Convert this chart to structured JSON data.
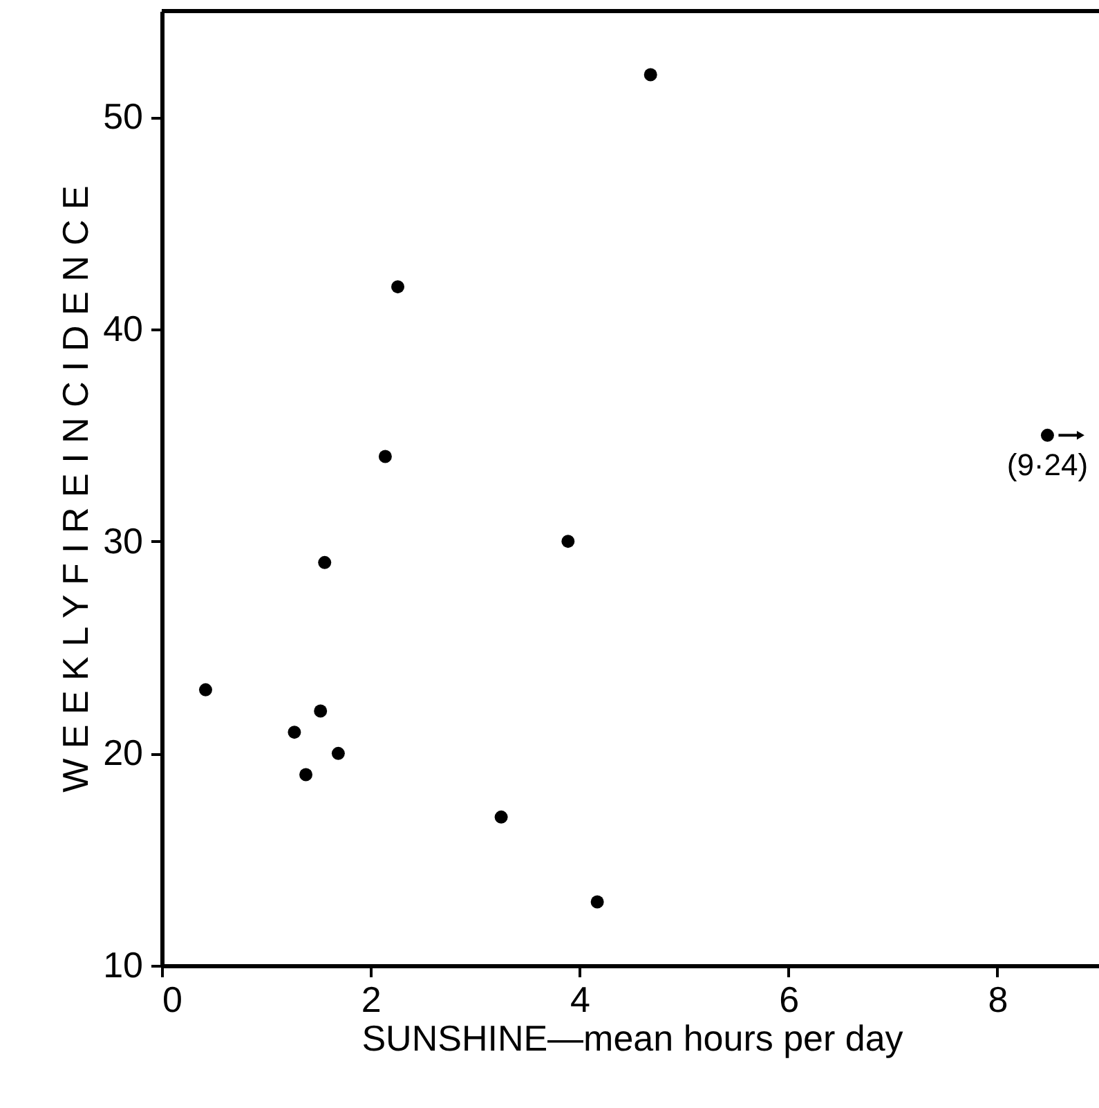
{
  "chart_data": {
    "type": "scatter",
    "xlabel": "SUNSHINE—mean hours per day",
    "ylabel": "W E E K L Y     F I R E     I N C I D E N C E",
    "x": [
      0.42,
      1.27,
      1.38,
      1.52,
      1.69,
      1.56,
      2.14,
      2.26,
      3.25,
      3.89,
      4.17,
      4.68,
      8.48
    ],
    "values": [
      23,
      21,
      19,
      22,
      20,
      29,
      34,
      42,
      17,
      30,
      13,
      52,
      35
    ],
    "color": "#000000",
    "marker": "circle",
    "xlim": [
      0,
      9
    ],
    "xticks": [
      0,
      2,
      4,
      6,
      8
    ],
    "ylim": [
      10,
      55
    ],
    "yticks": [
      10,
      20,
      30,
      40,
      50
    ],
    "grid": false,
    "annotations": [
      {
        "text": "(9·24)",
        "x": 8.48,
        "y": 35
      }
    ]
  }
}
